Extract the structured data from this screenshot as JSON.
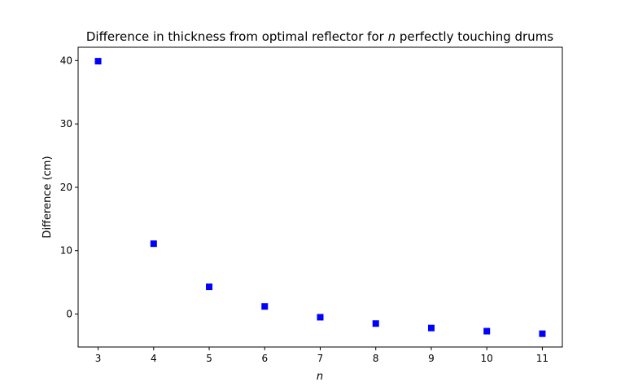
{
  "chart_data": {
    "type": "scatter",
    "title_prefix": "Difference in thickness from optimal reflector for ",
    "title_var": "n",
    "title_suffix": " perfectly touching drums",
    "xlabel": "n",
    "ylabel": "Difference (cm)",
    "xlim": [
      2.64,
      11.36
    ],
    "ylim": [
      -5.2,
      42.1
    ],
    "xticks": [
      3,
      4,
      5,
      6,
      7,
      8,
      9,
      10,
      11
    ],
    "yticks": [
      0,
      10,
      20,
      30,
      40
    ],
    "grid": false,
    "marker": "square",
    "color": "#0000ff",
    "x": [
      3,
      4,
      5,
      6,
      7,
      8,
      9,
      10,
      11
    ],
    "y": [
      39.9,
      11.1,
      4.3,
      1.2,
      -0.5,
      -1.5,
      -2.2,
      -2.7,
      -3.1
    ]
  }
}
